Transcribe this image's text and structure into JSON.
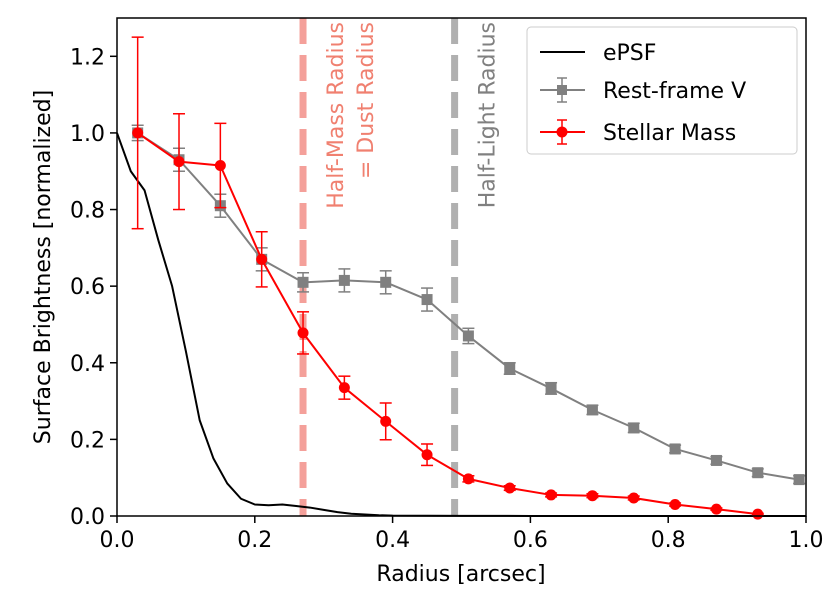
{
  "chart_data": {
    "type": "line",
    "xlabel": "Radius [arcsec]",
    "ylabel": "Surface Brightness [normalized]",
    "xlim": [
      0.0,
      1.0
    ],
    "ylim": [
      0.0,
      1.3
    ],
    "xticks": [
      "0.0",
      "0.2",
      "0.4",
      "0.6",
      "0.8",
      "1.0"
    ],
    "yticks": [
      "0.0",
      "0.2",
      "0.4",
      "0.6",
      "0.8",
      "1.0",
      "1.2"
    ],
    "legend_position": "top-right",
    "series": [
      {
        "name": "ePSF",
        "color": "#000000",
        "marker": "none",
        "x": [
          0.0,
          0.02,
          0.04,
          0.06,
          0.08,
          0.1,
          0.12,
          0.14,
          0.16,
          0.18,
          0.2,
          0.22,
          0.24,
          0.26,
          0.28,
          0.3,
          0.32,
          0.34,
          0.36,
          0.38,
          0.4,
          0.45,
          0.5,
          0.55,
          0.6,
          0.7,
          0.8,
          0.9,
          1.0
        ],
        "y": [
          1.0,
          0.9,
          0.85,
          0.72,
          0.6,
          0.43,
          0.25,
          0.15,
          0.085,
          0.045,
          0.03,
          0.028,
          0.03,
          0.026,
          0.022,
          0.016,
          0.01,
          0.006,
          0.004,
          0.002,
          0.001,
          0.0005,
          0.0003,
          0.0002,
          0.0001,
          0.0,
          0.0,
          0.0,
          0.0
        ]
      },
      {
        "name": "Rest-frame V",
        "color": "#808080",
        "marker": "square",
        "x": [
          0.03,
          0.09,
          0.15,
          0.21,
          0.27,
          0.33,
          0.39,
          0.45,
          0.51,
          0.57,
          0.63,
          0.69,
          0.75,
          0.81,
          0.87,
          0.93,
          0.99
        ],
        "y": [
          1.0,
          0.93,
          0.81,
          0.67,
          0.61,
          0.615,
          0.61,
          0.565,
          0.47,
          0.385,
          0.333,
          0.277,
          0.23,
          0.175,
          0.145,
          0.113,
          0.095
        ],
        "err": [
          0.02,
          0.03,
          0.03,
          0.03,
          0.025,
          0.03,
          0.03,
          0.03,
          0.02,
          0.015,
          0.015,
          0.012,
          0.012,
          0.01,
          0.01,
          0.01,
          0.01
        ]
      },
      {
        "name": "Stellar Mass",
        "color": "#ff0000",
        "marker": "circle",
        "x": [
          0.03,
          0.09,
          0.15,
          0.21,
          0.27,
          0.33,
          0.39,
          0.45,
          0.51,
          0.57,
          0.63,
          0.69,
          0.75,
          0.81,
          0.87,
          0.93
        ],
        "y": [
          1.0,
          0.925,
          0.915,
          0.67,
          0.478,
          0.335,
          0.247,
          0.16,
          0.097,
          0.073,
          0.055,
          0.053,
          0.047,
          0.03,
          0.018,
          0.005
        ],
        "err": [
          0.25,
          0.125,
          0.11,
          0.072,
          0.055,
          0.03,
          0.048,
          0.028,
          0.008,
          0.006,
          0.005,
          0.005,
          0.005,
          0.004,
          0.003,
          0.002
        ]
      }
    ],
    "vlines": [
      {
        "x": 0.27,
        "color": "#f4a09a",
        "labels": [
          "Half-Mass Radius",
          "= Dust Radius"
        ],
        "label_color": "#f08070"
      },
      {
        "x": 0.49,
        "color": "#b0b0b0",
        "labels": [
          "Half-Light Radius"
        ],
        "label_color": "#808080"
      }
    ]
  }
}
